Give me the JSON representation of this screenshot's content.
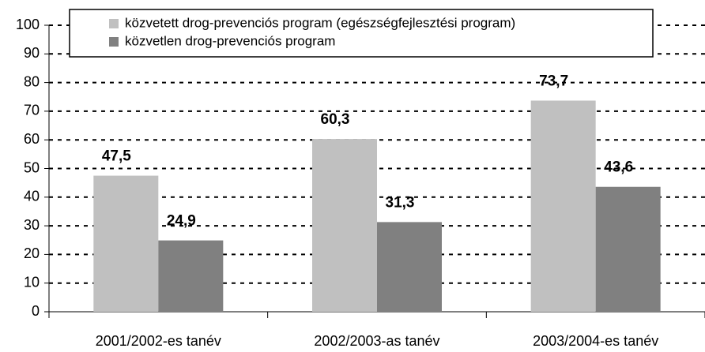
{
  "chart_data": {
    "type": "bar",
    "categories": [
      "2001/2002-es tanév",
      "2002/2003-as tanév",
      "2003/2004-es tanév"
    ],
    "series": [
      {
        "name": "közvetett drog-prevenciós program (egészségfejlesztési program)",
        "color": "#c0c0c0",
        "values": [
          47.5,
          60.3,
          73.7
        ],
        "value_labels": [
          "47,5",
          "60,3",
          "73,7"
        ]
      },
      {
        "name": "közvetlen drog-prevenciós program",
        "color": "#808080",
        "values": [
          24.9,
          31.3,
          43.6
        ],
        "value_labels": [
          "24,9",
          "31,3",
          "43,6"
        ]
      }
    ],
    "ylim": [
      0,
      100
    ],
    "yticks": [
      0,
      10,
      20,
      30,
      40,
      50,
      60,
      70,
      80,
      90,
      100
    ],
    "grid": true,
    "legend": "top"
  }
}
